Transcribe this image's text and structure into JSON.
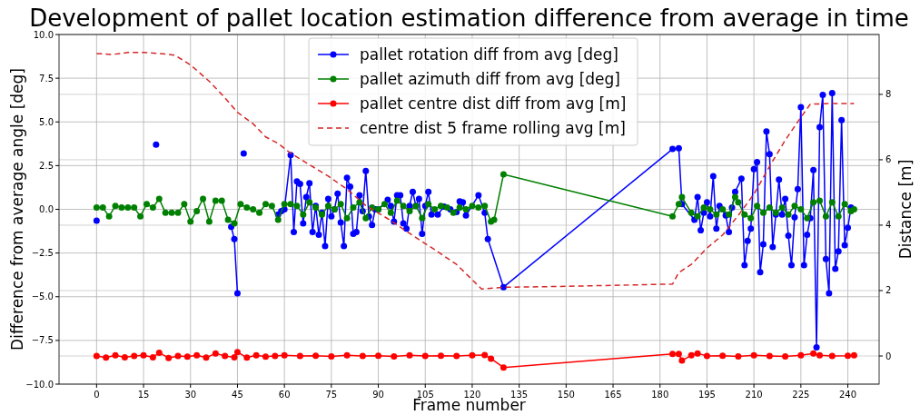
{
  "chart_data": {
    "type": "line",
    "title": "Development of pallet location estimation difference from average in time",
    "xlabel": "Frame number",
    "ylabel": "Difference from average angle [deg]",
    "y2label": "Distance [m]",
    "xlim": [
      -12,
      250
    ],
    "xticks": [
      0,
      15,
      30,
      45,
      60,
      75,
      90,
      105,
      120,
      135,
      150,
      165,
      180,
      195,
      210,
      225,
      240
    ],
    "ylim": [
      -10,
      10
    ],
    "yticks": [
      {
        "value": -10,
        "label": "−10.0"
      },
      {
        "value": -7.5,
        "label": "−7.5"
      },
      {
        "value": -5,
        "label": "−5.0"
      },
      {
        "value": -2.5,
        "label": "−2.5"
      },
      {
        "value": 0,
        "label": "0.0"
      },
      {
        "value": 2.5,
        "label": "2.5"
      },
      {
        "value": 5,
        "label": "5.0"
      },
      {
        "value": 7.5,
        "label": "7.5"
      },
      {
        "value": 10,
        "label": "10.0"
      }
    ],
    "y2lim": [
      -0.86,
      9.83
    ],
    "y2ticks": [
      0,
      2,
      4,
      6,
      8
    ],
    "grid": true,
    "legend": "top",
    "marker": "circle",
    "line_style": "solid",
    "series": [
      {
        "name": "pallet rotation diff from avg [deg]",
        "color": "#0000ff",
        "x": [
          0,
          1,
          18,
          19,
          20,
          42,
          43,
          44,
          45,
          46,
          47,
          48,
          57,
          58,
          59,
          60,
          62,
          63,
          64,
          65,
          66,
          67,
          68,
          69,
          70,
          71,
          72,
          73,
          74,
          75,
          76,
          77,
          78,
          79,
          80,
          81,
          82,
          83,
          84,
          85,
          86,
          87,
          88,
          89,
          90,
          93,
          94,
          95,
          96,
          97,
          98,
          99,
          100,
          101,
          102,
          103,
          104,
          105,
          106,
          107,
          109,
          111,
          113,
          115,
          116,
          117,
          118,
          122,
          124,
          125,
          130,
          184,
          186,
          187,
          191,
          192,
          193,
          194,
          195,
          196,
          197,
          198,
          199,
          201,
          202,
          203,
          204,
          206,
          207,
          208,
          209,
          210,
          211,
          212,
          213,
          214,
          215,
          216,
          217,
          218,
          219,
          220,
          221,
          222,
          223,
          224,
          225,
          226,
          227,
          228,
          229,
          230,
          231,
          232,
          233,
          234,
          235,
          236,
          237,
          238,
          239,
          240,
          241
        ],
        "values": [
          -0.65,
          null,
          null,
          3.7,
          null,
          null,
          -1.0,
          -1.7,
          -4.8,
          null,
          3.2,
          null,
          null,
          -0.3,
          -0.1,
          0.0,
          3.1,
          -1.3,
          1.6,
          1.45,
          -0.8,
          0.7,
          1.5,
          -1.3,
          0.2,
          -1.45,
          -0.2,
          -2.1,
          0.6,
          -0.4,
          0.0,
          0.9,
          -0.75,
          -2.1,
          1.8,
          1.3,
          -1.4,
          -1.3,
          0.8,
          -0.1,
          2.2,
          -0.4,
          -0.9,
          0.0,
          0.0,
          0.55,
          0.2,
          -0.7,
          0.8,
          0.8,
          -0.8,
          -1.1,
          0.2,
          1.0,
          0.2,
          0.6,
          -1.4,
          0.2,
          1.0,
          -0.3,
          -0.3,
          0.15,
          0.0,
          -0.15,
          0.45,
          0.4,
          -0.35,
          0.8,
          -0.2,
          -1.7,
          -4.45,
          3.45,
          3.5,
          0.3,
          -0.6,
          0.7,
          -1.2,
          -0.2,
          0.4,
          -0.4,
          1.9,
          -1.1,
          0.2,
          -0.35,
          -1.3,
          0.1,
          1.0,
          1.75,
          -3.2,
          -1.8,
          -1.1,
          2.3,
          2.7,
          -3.6,
          -2.0,
          4.45,
          3.15,
          -2.15,
          -0.3,
          1.7,
          -0.3,
          0.6,
          -1.5,
          -3.2,
          -0.45,
          1.15,
          5.85,
          -3.2,
          -1.45,
          -0.5,
          2.25,
          -7.9,
          4.7,
          6.55,
          -2.85,
          -4.8,
          6.65,
          -3.4,
          -2.4,
          5.1,
          -2.05,
          -1.05,
          0.1
        ]
      },
      {
        "name": "pallet azimuth diff from avg [deg]",
        "color": "#008000",
        "x": [
          0,
          2,
          4,
          6,
          8,
          10,
          12,
          14,
          16,
          18,
          20,
          22,
          24,
          26,
          28,
          30,
          32,
          34,
          36,
          38,
          40,
          42,
          44,
          46,
          48,
          50,
          52,
          54,
          56,
          58,
          60,
          62,
          64,
          66,
          68,
          70,
          72,
          74,
          76,
          78,
          80,
          82,
          84,
          86,
          88,
          90,
          92,
          94,
          96,
          98,
          100,
          102,
          104,
          106,
          108,
          110,
          112,
          114,
          116,
          118,
          120,
          122,
          124,
          126,
          127,
          130,
          184,
          186,
          187,
          190,
          192,
          194,
          196,
          198,
          200,
          202,
          204,
          205,
          207,
          209,
          211,
          213,
          215,
          217,
          219,
          221,
          223,
          225,
          227,
          229,
          231,
          233,
          235,
          237,
          239,
          241,
          242
        ],
        "values": [
          0.1,
          0.1,
          -0.4,
          0.2,
          0.1,
          0.1,
          0.1,
          -0.4,
          0.3,
          0.1,
          0.6,
          -0.2,
          -0.2,
          -0.2,
          0.3,
          -0.7,
          -0.1,
          0.6,
          -0.7,
          0.5,
          0.5,
          -0.6,
          -0.8,
          0.3,
          0.1,
          0.0,
          -0.2,
          0.3,
          0.2,
          -0.6,
          0.3,
          0.3,
          0.2,
          -0.3,
          0.4,
          0.1,
          -0.3,
          0.2,
          0.0,
          0.3,
          -0.5,
          0.1,
          0.4,
          -0.5,
          0.1,
          0.0,
          0.3,
          -0.2,
          0.5,
          0.2,
          -0.1,
          0.2,
          -0.5,
          0.3,
          0.0,
          0.2,
          0.1,
          -0.2,
          0.1,
          0.0,
          0.2,
          0.1,
          0.2,
          -0.7,
          -0.6,
          2.0,
          -0.4,
          0.3,
          0.7,
          -0.2,
          -0.4,
          0.1,
          0.0,
          -0.3,
          0.0,
          -0.3,
          0.7,
          0.4,
          -0.3,
          -0.5,
          0.2,
          -0.2,
          0.1,
          -0.2,
          0.1,
          -0.3,
          0.2,
          0.0,
          -0.5,
          0.4,
          0.5,
          -0.4,
          0.4,
          -0.4,
          0.3,
          -0.1,
          0.0
        ]
      },
      {
        "name": "pallet centre dist diff from avg [m]",
        "color": "#ff0000",
        "axis": "y2",
        "x": [
          0,
          3,
          6,
          9,
          12,
          15,
          18,
          20,
          23,
          26,
          29,
          32,
          35,
          38,
          41,
          44,
          45,
          48,
          51,
          54,
          57,
          60,
          65,
          70,
          75,
          80,
          85,
          90,
          95,
          100,
          105,
          110,
          115,
          120,
          124,
          126,
          130,
          184,
          186,
          187,
          190,
          192,
          195,
          200,
          205,
          210,
          215,
          220,
          225,
          229,
          231,
          235,
          240,
          242
        ],
        "values": [
          0.0,
          -0.05,
          0.02,
          -0.04,
          0.0,
          0.02,
          -0.04,
          0.1,
          -0.06,
          0.0,
          -0.02,
          0.02,
          -0.05,
          0.08,
          0.0,
          -0.04,
          0.12,
          -0.05,
          0.02,
          -0.02,
          0.0,
          0.02,
          0.0,
          0.01,
          -0.01,
          0.02,
          0.0,
          0.01,
          -0.01,
          0.02,
          0.0,
          0.01,
          0.0,
          0.02,
          0.03,
          -0.08,
          -0.35,
          0.06,
          0.06,
          -0.14,
          0.02,
          0.08,
          0.0,
          0.01,
          -0.01,
          0.02,
          0.0,
          -0.01,
          0.02,
          0.08,
          0.02,
          0.0,
          0.01,
          0.02
        ]
      },
      {
        "name": "centre dist 5 frame rolling avg [m]",
        "color": "#d62728",
        "axis": "y2",
        "marker": "none",
        "line_style": "dashed",
        "x": [
          0,
          5,
          10,
          15,
          20,
          25,
          30,
          36,
          40,
          45,
          50,
          54,
          58,
          62,
          68,
          74,
          80,
          86,
          93,
          100,
          108,
          115,
          123,
          130,
          150,
          170,
          184,
          186,
          190,
          195,
          200,
          205,
          210,
          215,
          220,
          225,
          228,
          235,
          242
        ],
        "values": [
          9.25,
          9.22,
          9.28,
          9.28,
          9.25,
          9.2,
          8.9,
          8.4,
          8.0,
          7.45,
          7.1,
          6.7,
          6.5,
          6.2,
          5.85,
          5.5,
          5.1,
          4.6,
          4.2,
          3.75,
          3.25,
          2.8,
          2.05,
          2.1,
          2.13,
          2.17,
          2.2,
          2.55,
          2.8,
          3.3,
          3.7,
          4.3,
          4.95,
          5.8,
          6.6,
          7.3,
          7.7,
          7.72,
          7.72
        ]
      }
    ]
  }
}
